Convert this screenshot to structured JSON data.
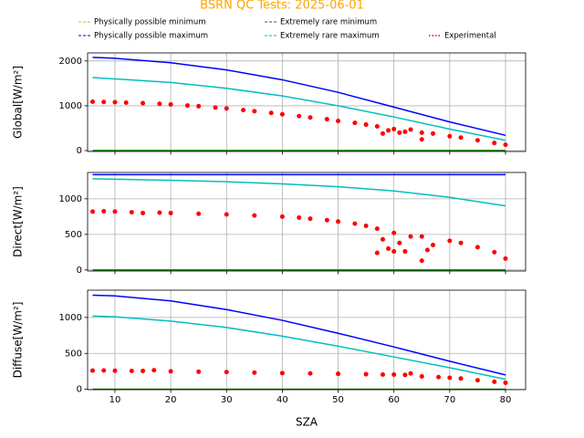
{
  "chart_data": [
    {
      "type": "line",
      "title": "BSRN QC Tests: 2025-06-01",
      "ylabel": "Global[W/m²]",
      "xlim": [
        5.1,
        83.6
      ],
      "ylim": [
        -20,
        2180
      ],
      "xticks": [
        10,
        20,
        30,
        40,
        50,
        60,
        70,
        80
      ],
      "yticks": [
        0,
        1000,
        2000
      ],
      "grid": true,
      "series": [
        {
          "name": "Physically possible minimum",
          "color": "#bfbf00",
          "dash": "3,2",
          "x": [
            6,
            80
          ],
          "values": [
            0,
            0
          ]
        },
        {
          "name": "Physically possible maximum",
          "color": "#0000ff",
          "dash": "3,2",
          "x": [
            6,
            10,
            20,
            30,
            40,
            50,
            60,
            70,
            80
          ],
          "values": [
            2080,
            2060,
            1960,
            1800,
            1580,
            1300,
            970,
            640,
            340
          ]
        },
        {
          "name": "Extremely rare minimum",
          "color": "#008000",
          "dash": "3,2",
          "x": [
            6,
            80
          ],
          "values": [
            0,
            0
          ]
        },
        {
          "name": "Extremely rare maximum",
          "color": "#00bfbf",
          "dash": "3,2",
          "x": [
            6,
            10,
            20,
            30,
            40,
            50,
            60,
            70,
            80
          ],
          "values": [
            1630,
            1600,
            1520,
            1390,
            1220,
            1000,
            750,
            480,
            230
          ]
        },
        {
          "name": "Experimental",
          "color": "#ff0000",
          "marker": "dot",
          "x": [
            6,
            8,
            10,
            12,
            15,
            18,
            20,
            23,
            25,
            28,
            30,
            33,
            35,
            38,
            40,
            43,
            45,
            48,
            50,
            53,
            55,
            57,
            58,
            59,
            60,
            61,
            62,
            63,
            65,
            65,
            67,
            70,
            72,
            75,
            78,
            80
          ],
          "values": [
            1090,
            1085,
            1080,
            1070,
            1060,
            1045,
            1030,
            1005,
            990,
            960,
            940,
            905,
            880,
            840,
            810,
            770,
            740,
            700,
            660,
            620,
            580,
            540,
            380,
            450,
            480,
            400,
            420,
            470,
            250,
            400,
            380,
            320,
            290,
            230,
            170,
            130
          ]
        }
      ]
    },
    {
      "type": "line",
      "ylabel": "Direct[W/m²]",
      "xlim": [
        5.1,
        83.6
      ],
      "ylim": [
        -15,
        1370
      ],
      "xticks": [
        10,
        20,
        30,
        40,
        50,
        60,
        70,
        80
      ],
      "yticks": [
        0,
        500,
        1000
      ],
      "grid": true,
      "series": [
        {
          "name": "Physically possible minimum",
          "color": "#bfbf00",
          "dash": "3,2",
          "x": [
            6,
            80
          ],
          "values": [
            0,
            0
          ]
        },
        {
          "name": "Physically possible maximum",
          "color": "#0000ff",
          "dash": "3,2",
          "x": [
            6,
            80
          ],
          "values": [
            1340,
            1340
          ]
        },
        {
          "name": "Extremely rare minimum",
          "color": "#008000",
          "dash": "3,2",
          "x": [
            6,
            80
          ],
          "values": [
            0,
            0
          ]
        },
        {
          "name": "Extremely rare maximum",
          "color": "#00bfbf",
          "dash": "3,2",
          "x": [
            6,
            10,
            20,
            30,
            40,
            50,
            60,
            70,
            80
          ],
          "values": [
            1280,
            1275,
            1260,
            1240,
            1210,
            1170,
            1110,
            1020,
            900
          ]
        },
        {
          "name": "Experimental",
          "color": "#ff0000",
          "marker": "dot",
          "x": [
            6,
            8,
            10,
            13,
            15,
            18,
            20,
            25,
            30,
            35,
            40,
            43,
            45,
            48,
            50,
            53,
            55,
            57,
            57,
            58,
            59,
            60,
            60,
            61,
            62,
            63,
            65,
            65,
            66,
            67,
            70,
            72,
            75,
            78,
            80
          ],
          "values": [
            820,
            825,
            820,
            810,
            800,
            805,
            800,
            790,
            780,
            765,
            750,
            735,
            720,
            700,
            680,
            650,
            620,
            580,
            240,
            430,
            300,
            520,
            260,
            380,
            260,
            470,
            470,
            130,
            280,
            350,
            410,
            380,
            320,
            250,
            160
          ]
        }
      ]
    },
    {
      "type": "line",
      "ylabel": "Diffuse[W/m²]",
      "xlabel": "SZA",
      "xlim": [
        5.1,
        83.6
      ],
      "ylim": [
        -5,
        1380
      ],
      "xticks": [
        10,
        20,
        30,
        40,
        50,
        60,
        70,
        80
      ],
      "yticks": [
        0,
        500,
        1000
      ],
      "grid": true,
      "series": [
        {
          "name": "Physically possible minimum",
          "color": "#bfbf00",
          "dash": "3,2",
          "x": [
            6,
            80
          ],
          "values": [
            0,
            0
          ]
        },
        {
          "name": "Physically possible maximum",
          "color": "#0000ff",
          "dash": "3,2",
          "x": [
            6,
            10,
            20,
            30,
            40,
            50,
            60,
            70,
            80
          ],
          "values": [
            1310,
            1300,
            1230,
            1110,
            960,
            780,
            590,
            390,
            200
          ]
        },
        {
          "name": "Extremely rare minimum",
          "color": "#008000",
          "dash": "3,2",
          "x": [
            6,
            80
          ],
          "values": [
            0,
            0
          ]
        },
        {
          "name": "Extremely rare maximum",
          "color": "#00bfbf",
          "dash": "3,2",
          "x": [
            6,
            10,
            20,
            30,
            40,
            50,
            60,
            70,
            80
          ],
          "values": [
            1020,
            1010,
            950,
            860,
            740,
            600,
            450,
            300,
            140
          ]
        },
        {
          "name": "Experimental",
          "color": "#ff0000",
          "marker": "dot",
          "x": [
            6,
            8,
            10,
            13,
            15,
            17,
            20,
            25,
            30,
            35,
            40,
            45,
            50,
            55,
            58,
            60,
            62,
            63,
            65,
            68,
            70,
            72,
            75,
            78,
            80
          ],
          "values": [
            260,
            262,
            258,
            255,
            255,
            265,
            250,
            245,
            240,
            232,
            225,
            220,
            215,
            210,
            205,
            205,
            200,
            220,
            180,
            170,
            160,
            150,
            125,
            105,
            90
          ]
        }
      ]
    }
  ]
}
